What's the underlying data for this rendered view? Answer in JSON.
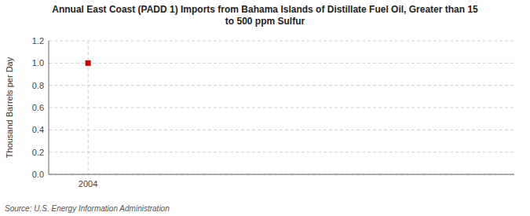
{
  "chart_data": {
    "type": "scatter",
    "title": "Annual East Coast (PADD 1) Imports from Bahama Islands of Distillate Fuel Oil, Greater than 15\nto 500 ppm Sulfur",
    "y_label": "Thousand Barrels per Day",
    "source": "Source: U.S. Energy Information Administration",
    "x": [
      2004
    ],
    "values": [
      1.0
    ],
    "color": "#cc0000",
    "marker": "square",
    "xlim": [
      2003.4,
      2010.5
    ],
    "xticks": [
      2004
    ],
    "ylim": [
      0.0,
      1.2
    ],
    "yticks": [
      {
        "value": 0.0,
        "label": "0.0"
      },
      0.2,
      0.4,
      0.6,
      0.8,
      {
        "value": 1.0,
        "label": "1.0"
      },
      1.2
    ],
    "grid": true
  }
}
